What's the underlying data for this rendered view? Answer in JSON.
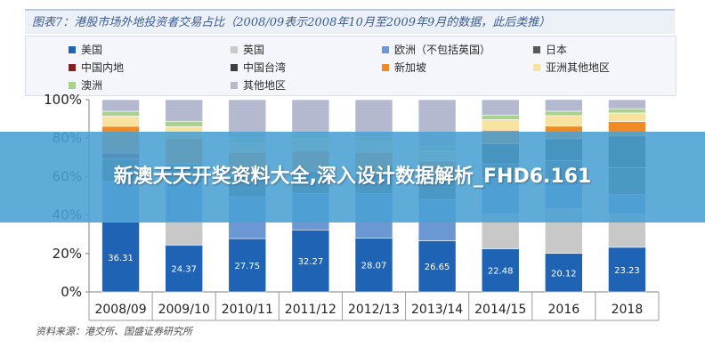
{
  "banner": {
    "text": "新澳天天开奖资料大全,深入设计数据解析_FHD6.161"
  },
  "source": "资料来源：港交所、国盛证券研究所",
  "chart_data": {
    "type": "bar",
    "stacked": true,
    "percent": true,
    "title": "图表7：港股市场外地投资者交易占比（2008/09表示2008年10月至2009年9月的数据，此后类推）",
    "xlabel": "",
    "ylabel": "",
    "ylim": [
      0,
      100
    ],
    "yticks": [
      "0%",
      "20%",
      "40%",
      "60%",
      "80%",
      "100%"
    ],
    "categories": [
      "2008/09",
      "2009/10",
      "2010/11",
      "2011/12",
      "2012/13",
      "2013/14",
      "2014/15",
      "2016",
      "2018"
    ],
    "legend_placement": "top",
    "series": [
      {
        "name": "美国",
        "color": "#1f63b5",
        "values": [
          36.31,
          24.37,
          27.75,
          32.27,
          28.07,
          26.65,
          22.48,
          20.12,
          23.23
        ],
        "labels": true
      },
      {
        "name": "英国",
        "color": "#c8c8c8",
        "values": [
          0,
          12.0,
          0,
          0,
          0,
          0,
          18.0,
          23.1,
          17.22
        ],
        "labels": false
      },
      {
        "name": "欧洲（不包括英国）",
        "color": "#6b97d3",
        "values": [
          21.0,
          20.5,
          21.5,
          19.0,
          23.0,
          21.5,
          18.5,
          15.0,
          10.15
        ],
        "labels": false
      },
      {
        "name": "日本",
        "color": "#595959",
        "values": [
          11.86,
          9.6,
          10.9,
          11.7,
          10.5,
          10.42,
          7.64,
          10.0,
          14.0
        ],
        "labels": false
      },
      {
        "name": "中国内地",
        "color": "#8c1c1c",
        "values": [
          3.0,
          0,
          0,
          0,
          0,
          0,
          0,
          0,
          0
        ],
        "labels": false
      },
      {
        "name": "中国台湾",
        "color": "#3d3d3d",
        "values": [
          0,
          0,
          0,
          0,
          0,
          0,
          10.5,
          11.5,
          16.5
        ],
        "labels": false
      },
      {
        "name": "新加坡",
        "color": "#f08a24",
        "values": [
          14.0,
          13.5,
          12.5,
          10.5,
          11.0,
          9.5,
          7.0,
          6.5,
          7.5
        ],
        "labels": false
      },
      {
        "name": "亚洲其他地区",
        "color": "#f7e2a0",
        "values": [
          5.3,
          6.0,
          5.0,
          6.5,
          6.0,
          5.5,
          5.5,
          5.5,
          4.5
        ],
        "labels": false
      },
      {
        "name": "澳洲",
        "color": "#a9d18e",
        "values": [
          2.5,
          2.8,
          2.5,
          2.2,
          2.3,
          2.3,
          2.4,
          2.3,
          2.2
        ],
        "labels": false
      },
      {
        "name": "其他地区",
        "color": "#b4b9cf",
        "values": [
          6.03,
          11.23,
          19.85,
          17.83,
          19.12,
          24.13,
          7.98,
          6.08,
          4.7
        ],
        "labels": false
      }
    ]
  }
}
